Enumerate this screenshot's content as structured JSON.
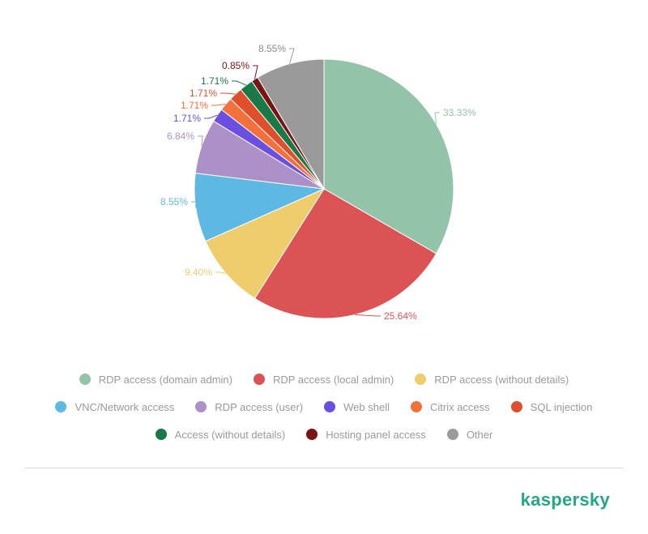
{
  "chart_data": {
    "type": "pie",
    "slices": [
      {
        "name": "RDP access (domain admin)",
        "value": 33.33,
        "label": "33.33%",
        "color": "#93c4a9"
      },
      {
        "name": "RDP access (local admin)",
        "value": 25.64,
        "label": "25.64%",
        "color": "#dc5356"
      },
      {
        "name": "RDP access (without details)",
        "value": 9.4,
        "label": "9.40%",
        "color": "#efcc6c"
      },
      {
        "name": "VNC/Network access",
        "value": 8.55,
        "label": "8.55%",
        "color": "#5db8e4"
      },
      {
        "name": "RDP access (user)",
        "value": 6.84,
        "label": "6.84%",
        "color": "#ab91c8"
      },
      {
        "name": "Web shell",
        "value": 1.71,
        "label": "1.71%",
        "color": "#6a4fe0"
      },
      {
        "name": "Citrix access",
        "value": 1.71,
        "label": "1.71%",
        "color": "#f4703b"
      },
      {
        "name": "SQL injection",
        "value": 1.71,
        "label": "1.71%",
        "color": "#e04f2b"
      },
      {
        "name": "Access (without details)",
        "value": 1.71,
        "label": "1.71%",
        "color": "#197a47"
      },
      {
        "name": "Hosting panel access",
        "value": 0.85,
        "label": "0.85%",
        "color": "#7a1414"
      },
      {
        "name": "Other",
        "value": 8.55,
        "label": "8.55%",
        "color": "#9a9a9a"
      }
    ],
    "legend_position": "bottom"
  },
  "brand": {
    "name": "kaspersky",
    "color": "#23a68a"
  }
}
